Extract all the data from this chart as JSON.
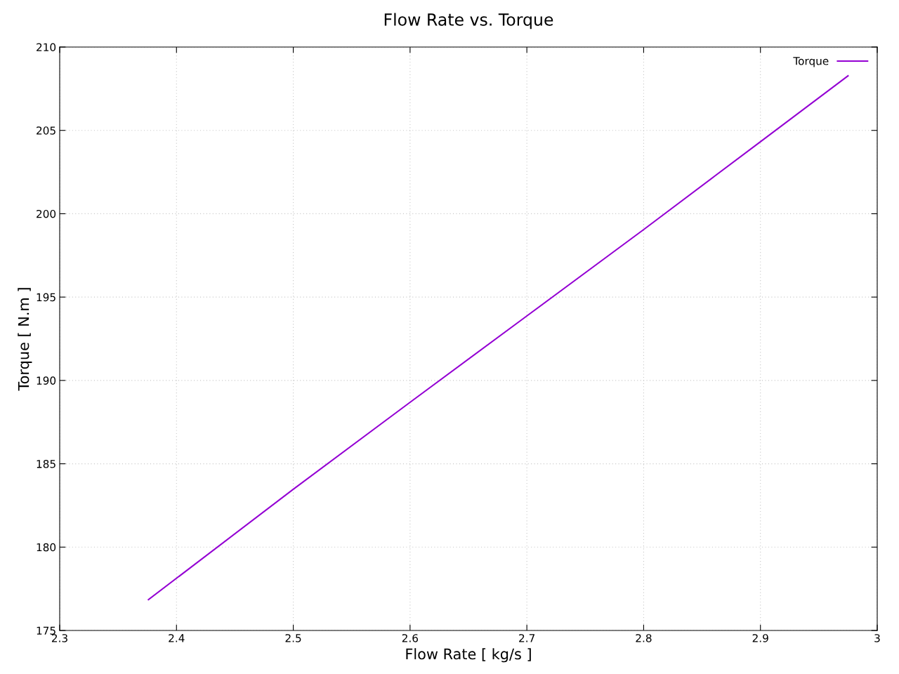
{
  "chart_data": {
    "type": "line",
    "title": "Flow Rate vs. Torque",
    "xlabel": "Flow Rate [ kg/s ]",
    "ylabel": "Torque [ N.m ]",
    "x": [
      2.376,
      2.5,
      2.6,
      2.7,
      2.8,
      2.9,
      2.975
    ],
    "series": [
      {
        "name": "Torque",
        "color": "#9400d3",
        "values": [
          176.85,
          183.47,
          188.69,
          193.87,
          199.05,
          204.32,
          208.27
        ]
      }
    ],
    "xlim": [
      2.3,
      3.0
    ],
    "xticks": [
      2.3,
      2.4,
      2.5,
      2.6,
      2.7,
      2.8,
      2.9,
      {
        "value": 3.0,
        "label": "3"
      }
    ],
    "ylim": [
      175,
      210
    ],
    "yticks": [
      175,
      180,
      185,
      190,
      195,
      200,
      205,
      210
    ],
    "grid": true,
    "legend": "top right",
    "marker": "none",
    "line_style": "solid"
  }
}
